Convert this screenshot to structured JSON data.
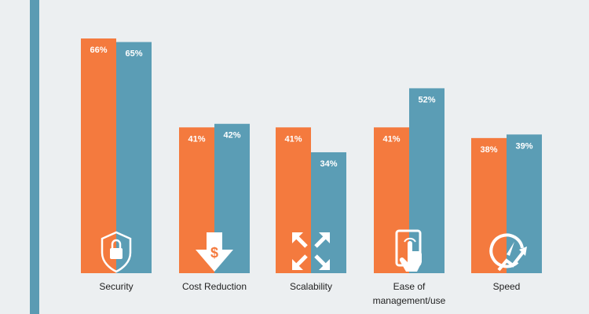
{
  "chart_data": {
    "type": "bar",
    "title": "",
    "xlabel": "",
    "ylabel": "",
    "ylim": [
      0,
      70
    ],
    "grid": false,
    "legend": "none",
    "categories": [
      "Security",
      "Cost Reduction",
      "Scalability",
      "Ease of management/use",
      "Speed"
    ],
    "category_lines": [
      [
        "Security"
      ],
      [
        "Cost Reduction"
      ],
      [
        "Scalability"
      ],
      [
        "Ease of",
        "management/use"
      ],
      [
        "Speed"
      ]
    ],
    "icons": [
      "shield-lock-icon",
      "dollar-down-arrow-icon",
      "expand-arrows-icon",
      "tablet-touch-icon",
      "speedometer-icon"
    ],
    "series": [
      {
        "name": "Series 1",
        "color": "#f47a3e",
        "values": [
          66,
          41,
          41,
          41,
          38
        ],
        "labels": [
          "66%",
          "41%",
          "41%",
          "41%",
          "38%"
        ]
      },
      {
        "name": "Series 2",
        "color": "#5b9db5",
        "values": [
          65,
          42,
          34,
          52,
          39
        ],
        "labels": [
          "65%",
          "42%",
          "34%",
          "52%",
          "39%"
        ]
      }
    ]
  }
}
